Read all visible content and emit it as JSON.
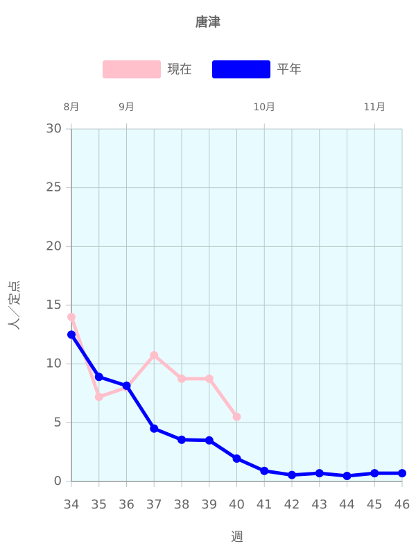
{
  "chart_data": {
    "type": "line",
    "title": "唐津",
    "x": [
      34,
      35,
      36,
      37,
      38,
      39,
      40,
      41,
      42,
      43,
      44,
      45,
      46
    ],
    "series": [
      {
        "name": "現在",
        "color": "#ffc0cb",
        "values": [
          14.0,
          7.2,
          8.0,
          10.75,
          8.75,
          8.75,
          5.5,
          null,
          null,
          null,
          null,
          null,
          null
        ]
      },
      {
        "name": "平年",
        "color": "#0000ff",
        "values": [
          12.5,
          8.9,
          8.15,
          4.5,
          3.55,
          3.5,
          1.95,
          0.9,
          0.55,
          0.7,
          0.47,
          0.7,
          0.7
        ]
      }
    ],
    "xlim": [
      34,
      46
    ],
    "xticks": [
      34,
      35,
      36,
      37,
      38,
      39,
      40,
      41,
      42,
      43,
      44,
      45,
      46
    ],
    "x2ticks": [
      {
        "value": 34,
        "label": "8月"
      },
      {
        "value": 36,
        "label": "9月"
      },
      {
        "value": 41,
        "label": "10月"
      },
      {
        "value": 45,
        "label": "11月"
      }
    ],
    "ylim": [
      0,
      30
    ],
    "yticks": [
      0,
      5,
      10,
      15,
      20,
      25,
      30
    ],
    "xlabel": "週",
    "ylabel": "人／定点",
    "grid": true,
    "plot_background": "#e8fcff"
  }
}
